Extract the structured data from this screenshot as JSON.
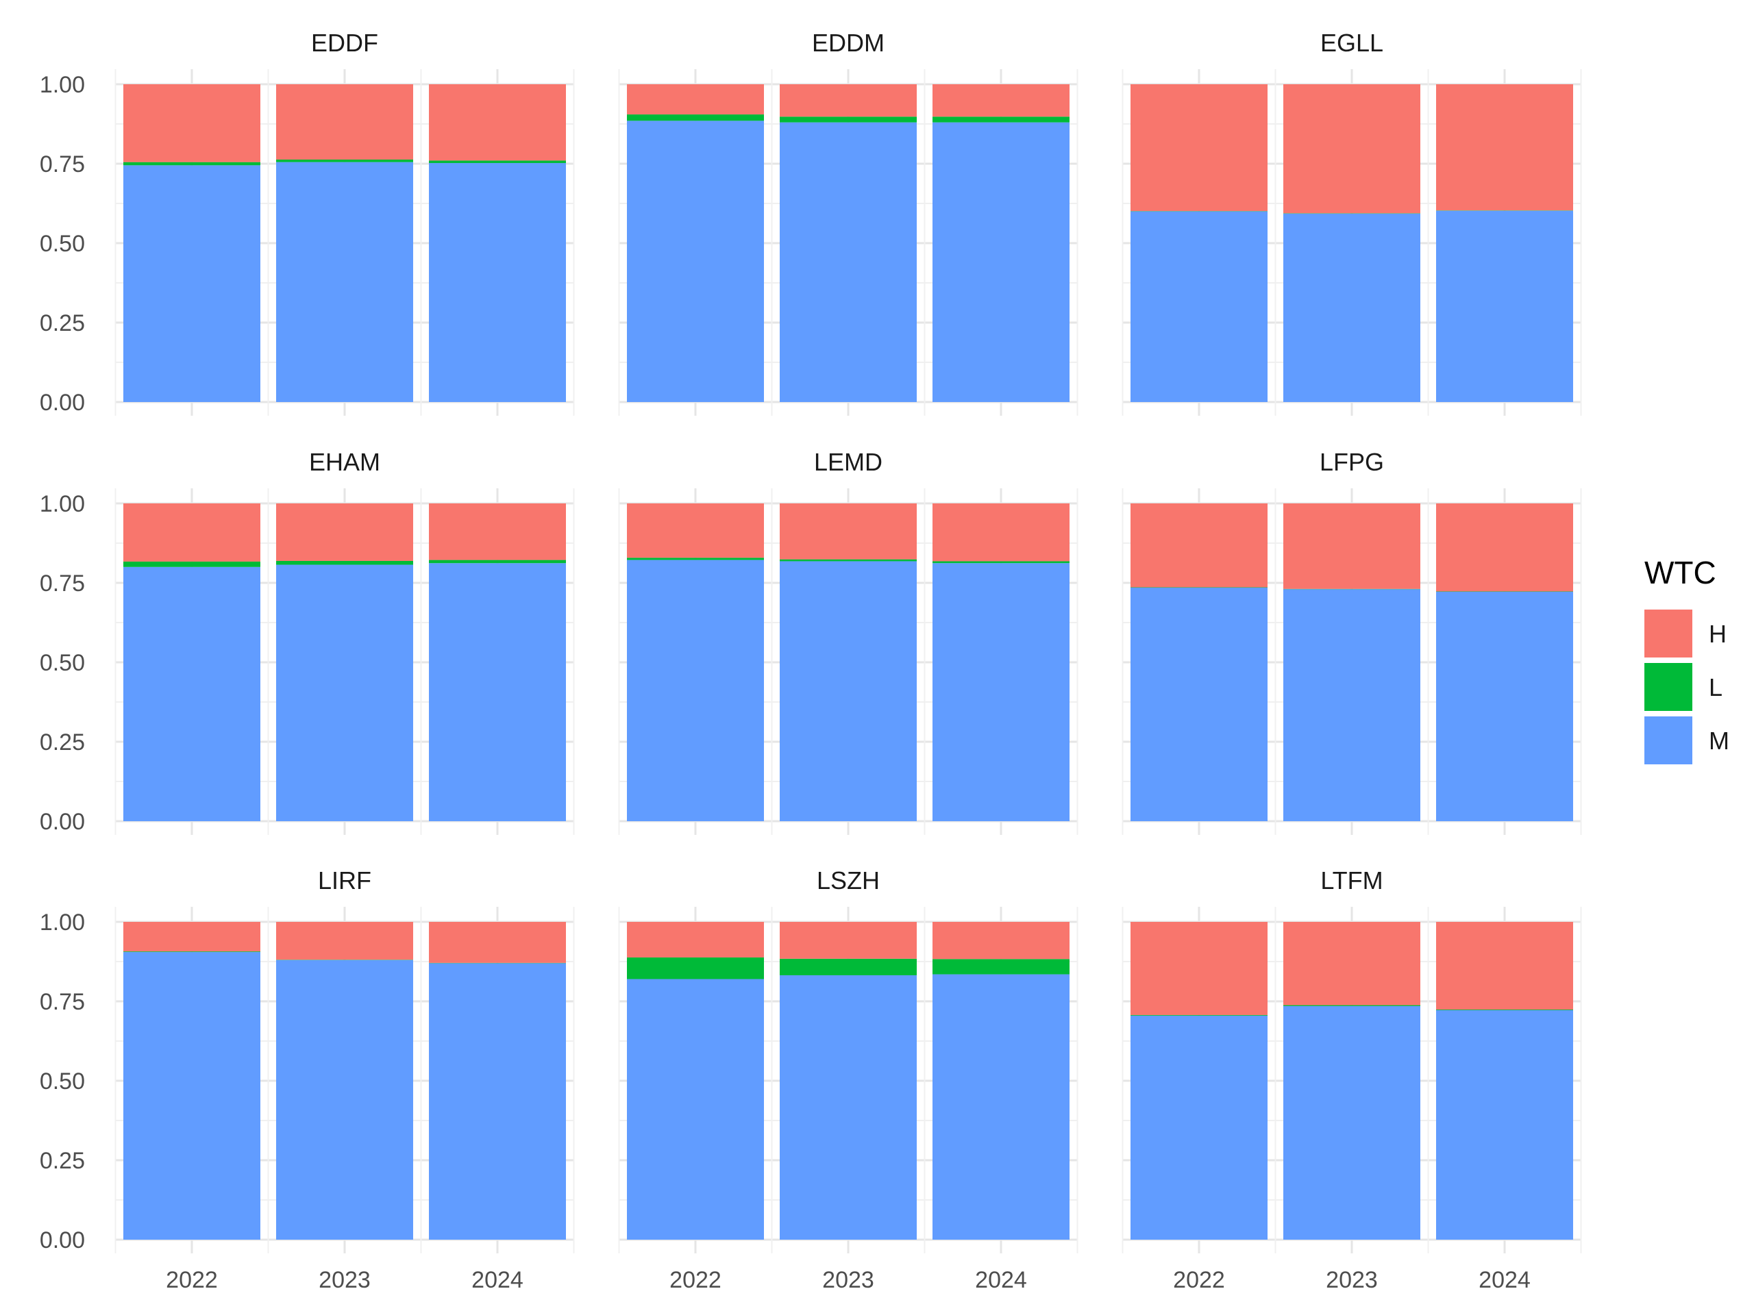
{
  "chart_data": {
    "type": "bar",
    "stacked": "proportion",
    "grid": true,
    "legend_position": "right",
    "legend": {
      "title": "WTC",
      "entries": [
        {
          "key": "H",
          "color": "#F8766D"
        },
        {
          "key": "L",
          "color": "#00BA38"
        },
        {
          "key": "M",
          "color": "#619CFF"
        }
      ]
    },
    "x_ticks": [
      "2022",
      "2023",
      "2024"
    ],
    "y_ticks": [
      "0.00",
      "0.25",
      "0.50",
      "0.75",
      "1.00"
    ],
    "ylim": [
      0,
      1
    ],
    "stack_order": [
      "M",
      "L",
      "H"
    ],
    "facets": [
      {
        "name": "EDDF",
        "bars": [
          {
            "x": "2022",
            "M": 0.745,
            "L": 0.01,
            "H": 0.245
          },
          {
            "x": "2023",
            "M": 0.755,
            "L": 0.008,
            "H": 0.237
          },
          {
            "x": "2024",
            "M": 0.752,
            "L": 0.008,
            "H": 0.24
          }
        ]
      },
      {
        "name": "EDDM",
        "bars": [
          {
            "x": "2022",
            "M": 0.885,
            "L": 0.02,
            "H": 0.095
          },
          {
            "x": "2023",
            "M": 0.88,
            "L": 0.018,
            "H": 0.102
          },
          {
            "x": "2024",
            "M": 0.88,
            "L": 0.018,
            "H": 0.102
          }
        ]
      },
      {
        "name": "EGLL",
        "bars": [
          {
            "x": "2022",
            "M": 0.6,
            "L": 0.001,
            "H": 0.399
          },
          {
            "x": "2023",
            "M": 0.593,
            "L": 0.001,
            "H": 0.406
          },
          {
            "x": "2024",
            "M": 0.602,
            "L": 0.001,
            "H": 0.397
          }
        ]
      },
      {
        "name": "EHAM",
        "bars": [
          {
            "x": "2022",
            "M": 0.8,
            "L": 0.017,
            "H": 0.183
          },
          {
            "x": "2023",
            "M": 0.807,
            "L": 0.012,
            "H": 0.181
          },
          {
            "x": "2024",
            "M": 0.812,
            "L": 0.01,
            "H": 0.178
          }
        ]
      },
      {
        "name": "LEMD",
        "bars": [
          {
            "x": "2022",
            "M": 0.822,
            "L": 0.007,
            "H": 0.171
          },
          {
            "x": "2023",
            "M": 0.818,
            "L": 0.006,
            "H": 0.176
          },
          {
            "x": "2024",
            "M": 0.812,
            "L": 0.006,
            "H": 0.182
          }
        ]
      },
      {
        "name": "LFPG",
        "bars": [
          {
            "x": "2022",
            "M": 0.735,
            "L": 0.001,
            "H": 0.264
          },
          {
            "x": "2023",
            "M": 0.73,
            "L": 0.001,
            "H": 0.269
          },
          {
            "x": "2024",
            "M": 0.722,
            "L": 0.001,
            "H": 0.277
          }
        ]
      },
      {
        "name": "LIRF",
        "bars": [
          {
            "x": "2022",
            "M": 0.905,
            "L": 0.002,
            "H": 0.093
          },
          {
            "x": "2023",
            "M": 0.88,
            "L": 0.001,
            "H": 0.119
          },
          {
            "x": "2024",
            "M": 0.87,
            "L": 0.001,
            "H": 0.129
          }
        ]
      },
      {
        "name": "LSZH",
        "bars": [
          {
            "x": "2022",
            "M": 0.82,
            "L": 0.068,
            "H": 0.112
          },
          {
            "x": "2023",
            "M": 0.832,
            "L": 0.052,
            "H": 0.116
          },
          {
            "x": "2024",
            "M": 0.835,
            "L": 0.048,
            "H": 0.117
          }
        ]
      },
      {
        "name": "LTFM",
        "bars": [
          {
            "x": "2022",
            "M": 0.705,
            "L": 0.002,
            "H": 0.293
          },
          {
            "x": "2023",
            "M": 0.735,
            "L": 0.003,
            "H": 0.262
          },
          {
            "x": "2024",
            "M": 0.722,
            "L": 0.002,
            "H": 0.276
          }
        ]
      }
    ]
  }
}
